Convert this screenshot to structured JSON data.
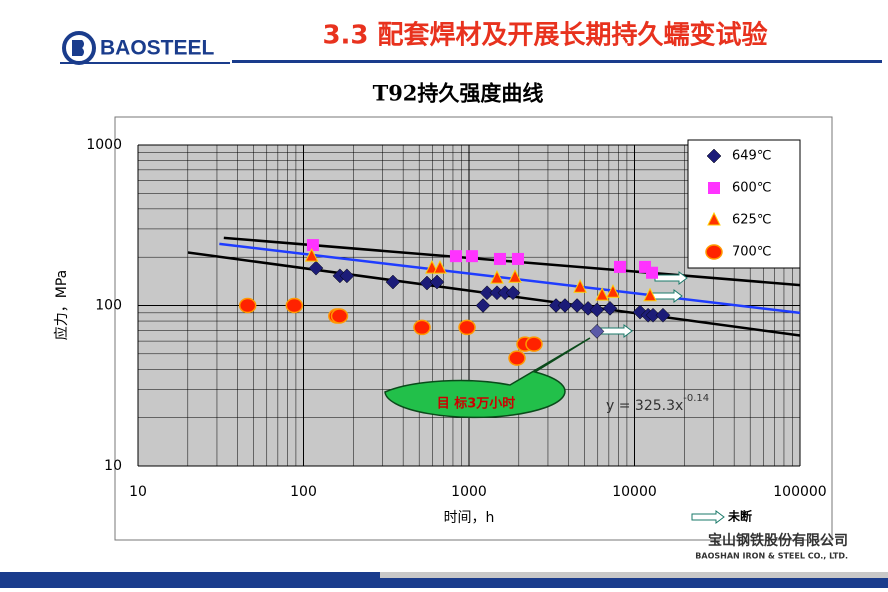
{
  "slide": {
    "logo": "BAOSTEEL",
    "title": "3.3 配套焊材及开展长期持久蠕变试验",
    "company_cn": "宝山钢铁股份有限公司",
    "company_en": "BAOSHAN IRON & STEEL CO., LTD."
  },
  "chart_data": {
    "type": "scatter",
    "title": "T92持久强度曲线",
    "x_label": "时间，h",
    "y_label": "应力，MPa",
    "log_x": true,
    "log_y": true,
    "grid": true,
    "legend": "upper right",
    "xlim": [
      10,
      100000
    ],
    "xticks": [
      10,
      100,
      1000,
      10000,
      100000
    ],
    "ylim": [
      10,
      1000
    ],
    "yticks": [
      10,
      100,
      1000
    ],
    "series": [
      {
        "name": "649℃",
        "color": "#1c1c78",
        "marker": "diamond",
        "x": [
          119,
          166,
          183,
          347,
          557,
          641,
          1216,
          1285,
          1476,
          1651,
          1845,
          3357,
          3800,
          4500,
          5240,
          5930,
          7110,
          10800,
          12080,
          12940,
          14860
        ],
        "values": [
          171,
          153,
          153,
          140,
          138,
          140,
          100,
          120,
          120,
          120,
          120,
          100,
          100,
          100,
          96,
          94,
          96,
          91,
          87,
          87,
          87
        ]
      },
      {
        "name": "600℃",
        "color": "#ff33ff",
        "marker": "square",
        "x": [
          114,
          834,
          1042,
          1539,
          1977,
          8170,
          11570,
          12760
        ],
        "values": [
          238,
          203,
          203,
          195,
          195,
          174,
          174,
          160
        ]
      },
      {
        "name": "625℃",
        "color": "#ff3300",
        "marker": "triangle",
        "x": [
          112,
          597,
          668,
          1476,
          1897,
          4690,
          6370,
          7410,
          12410
        ],
        "values": [
          203,
          171,
          171,
          148,
          150,
          130,
          116,
          121,
          115
        ]
      },
      {
        "name": "700℃",
        "color": "#ff2200",
        "marker": "circle",
        "x": [
          46,
          88,
          159,
          165,
          520,
          973,
          1950,
          2180,
          2470
        ],
        "values": [
          100,
          100,
          86,
          86,
          73,
          73,
          47,
          57.5,
          57.5
        ]
      }
    ],
    "trend_lines": [
      {
        "color": "#000000",
        "x": [
          20,
          100000
        ],
        "values": [
          214,
          65
        ]
      },
      {
        "color": "#000000",
        "x": [
          33,
          100000
        ],
        "values": [
          264,
          134
        ]
      },
      {
        "color": "#1f3cff",
        "x": [
          31,
          100000
        ],
        "values": [
          242,
          90
        ]
      }
    ],
    "target_point": {
      "x": 5930,
      "value": 69,
      "color": "#5a5aa8"
    },
    "equation": "y = 325.3x",
    "equation_exponent": "-0.14",
    "callout": "目 标3万小时",
    "unbroken_legend": "未断"
  }
}
